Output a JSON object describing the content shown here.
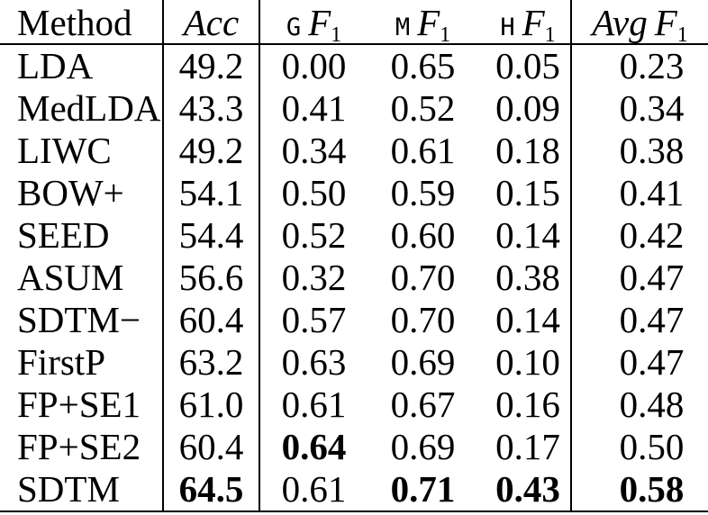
{
  "table": {
    "background": "#ffffff",
    "text_color": "#000000",
    "rule_color": "#000000",
    "header": {
      "method": "Method",
      "acc": "Acc",
      "g": "G",
      "m": "M",
      "h": "H",
      "avg": "Avg",
      "f": "F",
      "sub": "1"
    },
    "column_keys": [
      "method",
      "acc",
      "g",
      "m",
      "h",
      "avg"
    ],
    "rows": [
      {
        "method": "LDA",
        "acc": "49.2",
        "g": "0.00",
        "m": "0.65",
        "h": "0.05",
        "avg": "0.23",
        "bold": []
      },
      {
        "method": "MedLDA",
        "acc": "43.3",
        "g": "0.41",
        "m": "0.52",
        "h": "0.09",
        "avg": "0.34",
        "bold": []
      },
      {
        "method": "LIWC",
        "acc": "49.2",
        "g": "0.34",
        "m": "0.61",
        "h": "0.18",
        "avg": "0.38",
        "bold": []
      },
      {
        "method": "BOW+",
        "acc": "54.1",
        "g": "0.50",
        "m": "0.59",
        "h": "0.15",
        "avg": "0.41",
        "bold": []
      },
      {
        "method": "SEED",
        "acc": "54.4",
        "g": "0.52",
        "m": "0.60",
        "h": "0.14",
        "avg": "0.42",
        "bold": []
      },
      {
        "method": "ASUM",
        "acc": "56.6",
        "g": "0.32",
        "m": "0.70",
        "h": "0.38",
        "avg": "0.47",
        "bold": []
      },
      {
        "method": "SDTM−",
        "acc": "60.4",
        "g": "0.57",
        "m": "0.70",
        "h": "0.14",
        "avg": "0.47",
        "bold": []
      },
      {
        "method": "FirstP",
        "acc": "63.2",
        "g": "0.63",
        "m": "0.69",
        "h": "0.10",
        "avg": "0.47",
        "bold": []
      },
      {
        "method": "FP+SE1",
        "acc": "61.0",
        "g": "0.61",
        "m": "0.67",
        "h": "0.16",
        "avg": "0.48",
        "bold": []
      },
      {
        "method": "FP+SE2",
        "acc": "60.4",
        "g": "0.64",
        "m": "0.69",
        "h": "0.17",
        "avg": "0.50",
        "bold": [
          "g"
        ]
      },
      {
        "method": "SDTM",
        "acc": "64.5",
        "g": "0.61",
        "m": "0.71",
        "h": "0.43",
        "avg": "0.58",
        "bold": [
          "acc",
          "m",
          "h",
          "avg"
        ]
      }
    ]
  }
}
